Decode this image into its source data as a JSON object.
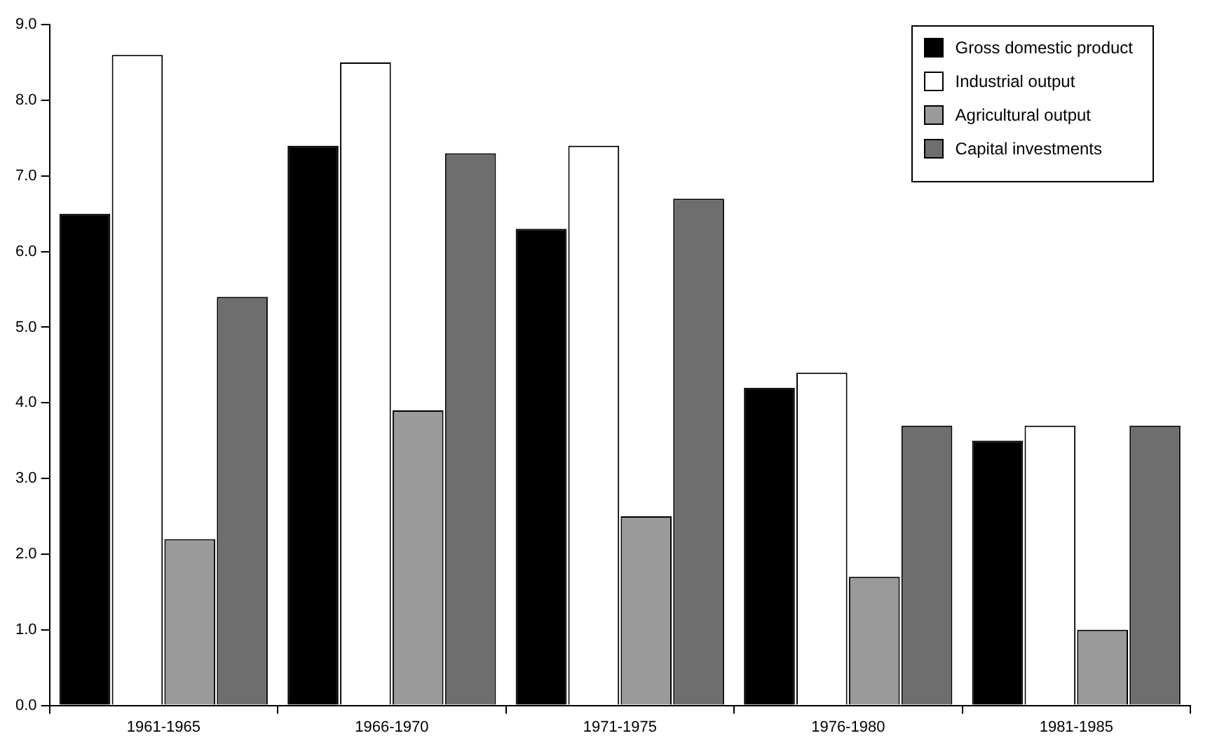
{
  "chart_data": {
    "type": "bar",
    "categories": [
      "1961-1965",
      "1966-1970",
      "1971-1975",
      "1976-1980",
      "1981-1985"
    ],
    "series": [
      {
        "name": "Gross domestic product",
        "color": "#000000",
        "values": [
          6.5,
          7.4,
          6.3,
          4.2,
          3.5
        ]
      },
      {
        "name": "Industrial output",
        "color": "#ffffff",
        "values": [
          8.6,
          8.5,
          7.4,
          4.4,
          3.7
        ]
      },
      {
        "name": "Agricultural output",
        "color": "#9a9a9a",
        "values": [
          2.2,
          3.9,
          2.5,
          1.7,
          1.0
        ]
      },
      {
        "name": "Capital investments",
        "color": "#6e6e6e",
        "values": [
          5.4,
          7.3,
          6.7,
          3.7,
          3.7
        ]
      }
    ],
    "ylim": [
      0,
      9
    ],
    "yticks": [
      {
        "value": 0,
        "label": "0.0"
      },
      {
        "value": 1,
        "label": "1.0"
      },
      {
        "value": 2,
        "label": "2.0"
      },
      {
        "value": 3,
        "label": "3.0"
      },
      {
        "value": 4,
        "label": "4.0"
      },
      {
        "value": 5,
        "label": "5.0"
      },
      {
        "value": 6,
        "label": "6.0"
      },
      {
        "value": 7,
        "label": "7.0"
      },
      {
        "value": 8,
        "label": "8.0"
      },
      {
        "value": 9,
        "label": "9.0"
      }
    ],
    "grid": false,
    "legend": "top right"
  }
}
